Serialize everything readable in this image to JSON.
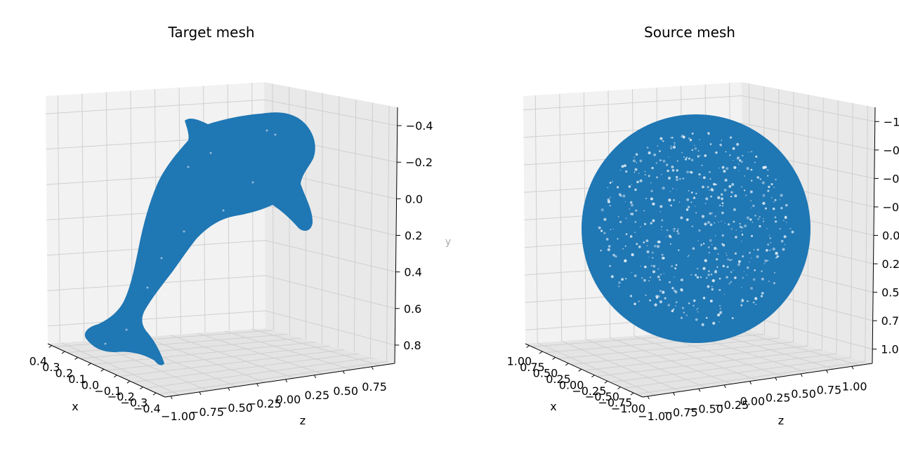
{
  "chart_data": [
    {
      "type": "scatter",
      "projection": "3d",
      "title": "Target mesh",
      "xlabel": "x",
      "ylabel": "y",
      "zlabel": "z",
      "x_ticks": [
        "0.4",
        "0.3",
        "0.2",
        "0.1",
        "0.0",
        "−0.1",
        "−0.2",
        "−0.3",
        "−0.4"
      ],
      "z_ticks": [
        "−1.00",
        "−0.75",
        "−0.50",
        "−0.25",
        "0.00",
        "0.25",
        "0.50",
        "0.75"
      ],
      "y_ticks": [
        "−0.4",
        "−0.2",
        "0.0",
        "0.2",
        "0.4",
        "0.6",
        "0.8"
      ],
      "xlim": [
        0.4,
        -0.4
      ],
      "zlim": [
        -1.0,
        0.9
      ],
      "ylim": [
        -0.5,
        0.9
      ],
      "grid": true,
      "color": "#1f77b4",
      "shape": "dolphin"
    },
    {
      "type": "scatter",
      "projection": "3d",
      "title": "Source mesh",
      "xlabel": "x",
      "ylabel": "",
      "zlabel": "z",
      "x_ticks": [
        "1.00",
        "0.75",
        "0.50",
        "0.25",
        "0.00",
        "−0.25",
        "−0.50",
        "−0.75",
        "−1.00"
      ],
      "z_ticks": [
        "−1.00",
        "−0.75",
        "−0.50",
        "−0.25",
        "0.00",
        "0.25",
        "0.50",
        "0.75",
        "1.00"
      ],
      "y_ticks": [
        "−1.",
        "−0.",
        "−0.",
        "−0.",
        "0.0",
        "0.2",
        "0.5",
        "0.7",
        "1.0"
      ],
      "xlim": [
        1.0,
        -1.0
      ],
      "zlim": [
        -1.0,
        1.0
      ],
      "ylim": [
        -1.0,
        1.0
      ],
      "grid": true,
      "color": "#1f77b4",
      "shape": "sphere"
    }
  ]
}
